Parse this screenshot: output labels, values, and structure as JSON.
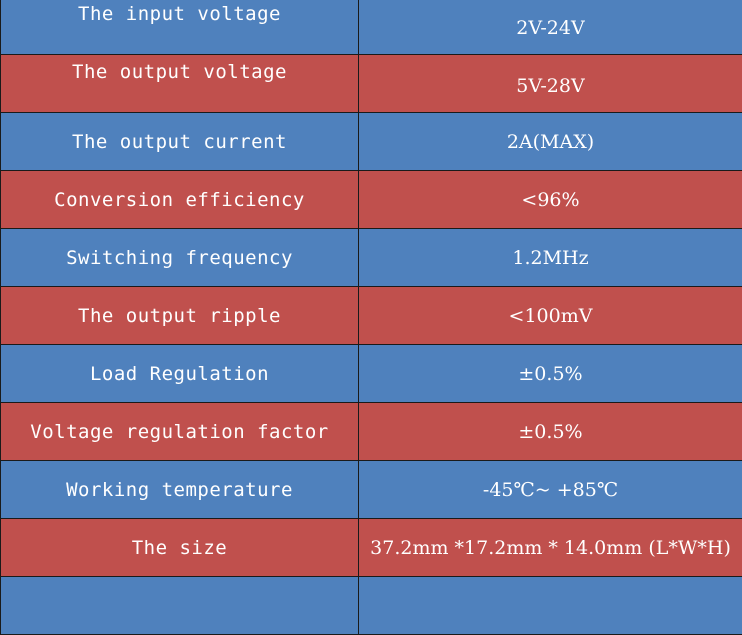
{
  "rows": [
    {
      "label": "The input voltage",
      "value": "2V-24V",
      "color": "#4f81bd"
    },
    {
      "label": "The output voltage",
      "value": "5V-28V",
      "color": "#c0504d"
    },
    {
      "label": "The output current",
      "value": "2A(MAX)",
      "color": "#4f81bd"
    },
    {
      "label": "Conversion efficiency",
      "value": "<96%",
      "color": "#c0504d"
    },
    {
      "label": "Switching frequency",
      "value": "1.2MHz",
      "color": "#4f81bd"
    },
    {
      "label": "The output ripple",
      "value": "<100mV",
      "color": "#c0504d"
    },
    {
      "label": "Load Regulation",
      "value": "±0.5%",
      "color": "#4f81bd"
    },
    {
      "label": "Voltage regulation factor",
      "value": "±0.5%",
      "color": "#c0504d"
    },
    {
      "label": "Working temperature",
      "value": "-45℃~ +85℃",
      "color": "#4f81bd"
    },
    {
      "label": "The size",
      "value": "37.2mm *17.2mm * 14.0mm (L*W*H)",
      "color": "#c0504d"
    },
    {
      "label": "",
      "value": "",
      "color": "#4f81bd"
    }
  ]
}
